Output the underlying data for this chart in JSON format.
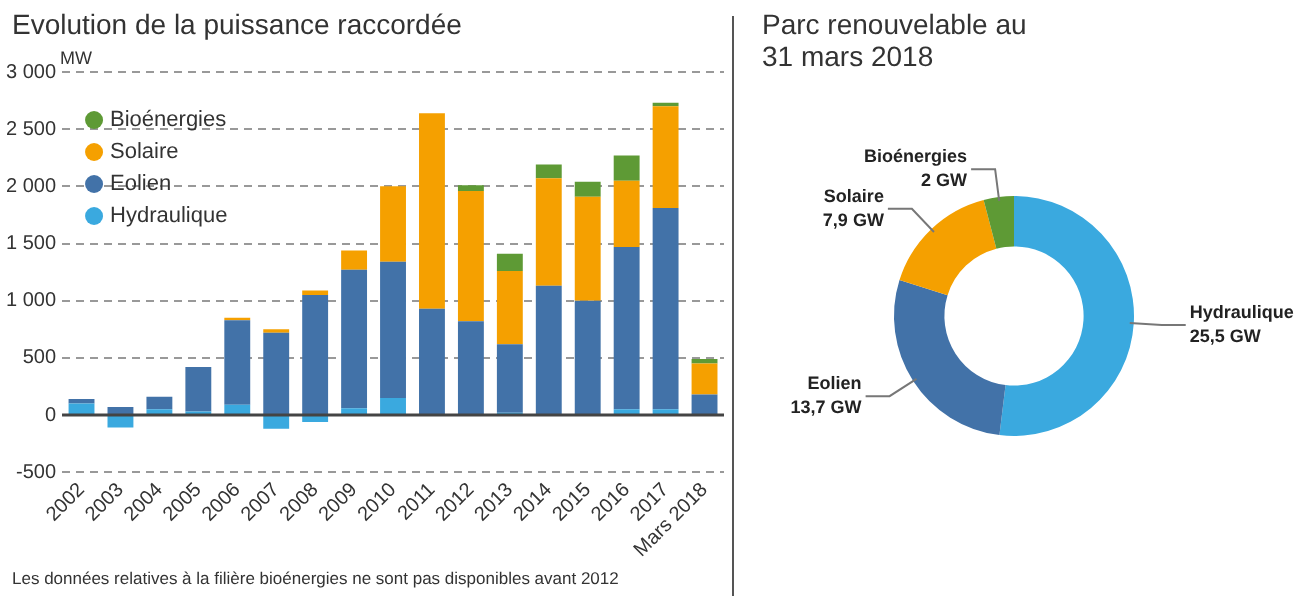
{
  "chart_data": [
    {
      "type": "bar",
      "title": "Evolution de la puissance raccordée",
      "ylabel": "MW",
      "stacked": true,
      "categories": [
        "2002",
        "2003",
        "2004",
        "2005",
        "2006",
        "2007",
        "2008",
        "2009",
        "2010",
        "2011",
        "2012",
        "2013",
        "2014",
        "2015",
        "2016",
        "2017",
        "Mars 2018"
      ],
      "series": [
        {
          "name": "Hydraulique",
          "color": "#3aa9df",
          "values": [
            100,
            -110,
            50,
            30,
            90,
            -120,
            -60,
            60,
            150,
            0,
            0,
            20,
            0,
            0,
            50,
            50,
            0
          ]
        },
        {
          "name": "Eolien",
          "color": "#4272a8",
          "values": [
            40,
            70,
            110,
            390,
            740,
            720,
            1050,
            1210,
            1190,
            930,
            820,
            600,
            1130,
            1000,
            1420,
            1760,
            180
          ]
        },
        {
          "name": "Solaire",
          "color": "#f5a000",
          "values": [
            0,
            0,
            0,
            0,
            20,
            30,
            40,
            170,
            660,
            1710,
            1140,
            640,
            940,
            910,
            580,
            890,
            270
          ]
        },
        {
          "name": "Bioénergies",
          "color": "#5e9a35",
          "values": [
            null,
            null,
            null,
            null,
            null,
            null,
            null,
            null,
            null,
            null,
            50,
            150,
            120,
            130,
            220,
            30,
            40
          ]
        }
      ],
      "ylim": [
        -500,
        3000
      ],
      "yticks": [
        {
          "value": -500,
          "label": "-500"
        },
        {
          "value": 0,
          "label": "0"
        },
        {
          "value": 500,
          "label": "500"
        },
        {
          "value": 1000,
          "label": "1 000"
        },
        {
          "value": 1500,
          "label": "1 500"
        },
        {
          "value": 2000,
          "label": "2 000"
        },
        {
          "value": 2500,
          "label": "2 500"
        },
        {
          "value": 3000,
          "label": "3 000"
        }
      ],
      "grid": "y",
      "legend": "top left",
      "ref_lines": [
        {
          "axis": "y",
          "value": 0
        }
      ],
      "annotations": [
        "Les données relatives à la filière bioénergies ne sont pas disponibles avant 2012"
      ]
    },
    {
      "type": "donut",
      "title": "Parc renouvelable au 31 mars 2018",
      "categories": [
        "Hydraulique",
        "Eolien",
        "Solaire",
        "Bioénergies"
      ],
      "values": [
        25.5,
        13.7,
        7.9,
        2
      ],
      "value_labels": [
        "25,5 GW",
        "13,7 GW",
        "7,9 GW",
        "2 GW"
      ],
      "colors": [
        "#3aa9df",
        "#4272a8",
        "#f5a000",
        "#5e9a35"
      ]
    }
  ]
}
